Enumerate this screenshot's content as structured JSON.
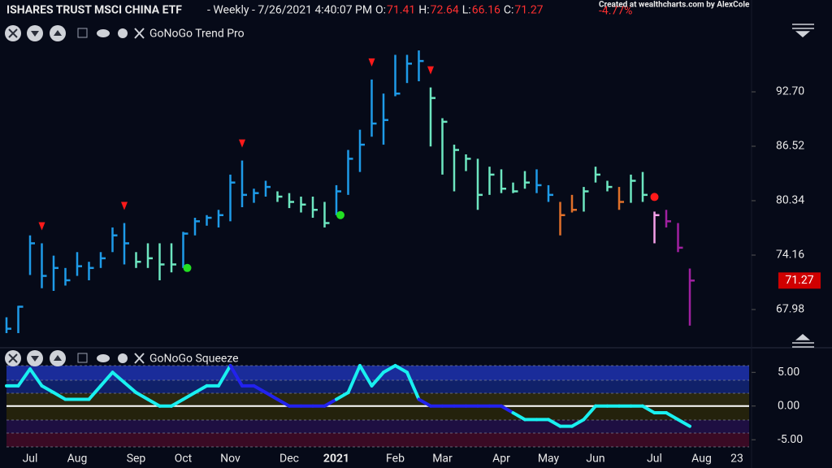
{
  "chart_data": [
    {
      "type": "ohlc",
      "title": "ISHARES TRUST MSCI CHINA ETF",
      "subtitle": "- Weekly - 7/26/2021 4:40:07 PM",
      "quote": [
        {
          "label": "O:",
          "value": 71.41
        },
        {
          "label": "H:",
          "value": 72.64
        },
        {
          "label": "L:",
          "value": 66.16
        },
        {
          "label": "C:",
          "value": 71.27
        }
      ],
      "change": {
        "value": -4.77,
        "label": "-4.77%"
      },
      "credit": "Created at wealthcharts.com by AlexCole",
      "panel": "GoNoGo Trend Pro",
      "categories": [
        null,
        null,
        "Jul",
        null,
        null,
        null,
        "Aug",
        null,
        null,
        null,
        null,
        "Sep",
        null,
        null,
        null,
        "Oct",
        null,
        null,
        null,
        "Nov",
        null,
        null,
        null,
        null,
        "Dec",
        null,
        null,
        null,
        "2021",
        null,
        null,
        null,
        null,
        "Feb",
        null,
        null,
        null,
        "Mar",
        null,
        null,
        null,
        null,
        "Apr",
        null,
        null,
        null,
        "May",
        null,
        null,
        null,
        "Jun",
        null,
        null,
        null,
        null,
        "Jul",
        null,
        null,
        null,
        "Aug",
        null,
        null,
        "23"
      ],
      "high": [
        67.1,
        68.4,
        76.4,
        75.5,
        74.1,
        72.7,
        74.5,
        73.4,
        74.5,
        77.3,
        77.8,
        74.5,
        75.5,
        75.5,
        75.5,
        76.8,
        78.4,
        78.7,
        79.3,
        83.3,
        84.9,
        81.7,
        82.6,
        81.4,
        81.2,
        80.8,
        80.8,
        80.2,
        82.1,
        86.1,
        88.4,
        94.1,
        92.5,
        96.9,
        96.9,
        97.4,
        93.2,
        89.7,
        86.7,
        85.6,
        85.1,
        84.2,
        83.9,
        82.4,
        83.7,
        83.9,
        82.1,
        80.2,
        81.0,
        81.9,
        84.2,
        82.6,
        81.9,
        83.3,
        83.6,
        79.1,
        79.3,
        77.8,
        72.64,
        null,
        null,
        null,
        null
      ],
      "low": [
        65.3,
        65.3,
        71.9,
        70.4,
        70.1,
        70.7,
        71.8,
        71.3,
        72.7,
        74.5,
        73.1,
        72.7,
        72.7,
        71.3,
        72.2,
        72.7,
        76.4,
        77.5,
        77.3,
        78.0,
        79.6,
        80.1,
        80.8,
        80.2,
        79.5,
        79.0,
        78.4,
        77.3,
        78.7,
        81.0,
        83.6,
        87.6,
        86.7,
        92.2,
        93.7,
        93.9,
        86.5,
        83.3,
        81.4,
        83.7,
        79.3,
        81.0,
        81.2,
        81.2,
        81.7,
        81.2,
        80.2,
        76.4,
        79.0,
        79.1,
        82.4,
        81.4,
        79.3,
        80.1,
        80.2,
        75.5,
        77.3,
        74.5,
        66.16,
        null,
        null,
        null,
        null
      ],
      "close": [
        65.8,
        68.3,
        75.5,
        71.8,
        72.7,
        71.3,
        72.9,
        72.7,
        73.8,
        76.4,
        75.5,
        73.4,
        73.8,
        73.1,
        73.1,
        76.6,
        78.0,
        78.4,
        78.7,
        82.4,
        81.0,
        81.2,
        81.9,
        80.8,
        80.2,
        79.9,
        79.3,
        77.8,
        81.4,
        85.1,
        86.7,
        89.1,
        89.5,
        92.5,
        95.9,
        96.2,
        92.0,
        89.3,
        86.1,
        85.1,
        81.0,
        83.3,
        81.7,
        81.4,
        82.4,
        82.1,
        81.0,
        78.7,
        79.3,
        81.4,
        83.3,
        81.9,
        80.2,
        82.6,
        81.0,
        78.7,
        78.0,
        75.0,
        71.27,
        null,
        null,
        null,
        null
      ],
      "colors": [
        "#1e9be8",
        "#1e9be8",
        "#1e9be8",
        "#1e9be8",
        "#1e9be8",
        "#1e9be8",
        "#1e9be8",
        "#1e9be8",
        "#1e9be8",
        "#1e9be8",
        "#1e9be8",
        "#6de6c0",
        "#6de6c0",
        "#6de6c0",
        "#6de6c0",
        "#1e9be8",
        "#1e9be8",
        "#1e9be8",
        "#1e9be8",
        "#1e9be8",
        "#1e9be8",
        "#1e9be8",
        "#1e9be8",
        "#6de6c0",
        "#6de6c0",
        "#6de6c0",
        "#6de6c0",
        "#6de6c0",
        "#1e9be8",
        "#1e9be8",
        "#1e9be8",
        "#1e9be8",
        "#1e9be8",
        "#1e9be8",
        "#1e9be8",
        "#1e9be8",
        "#6de6c0",
        "#6de6c0",
        "#6de6c0",
        "#6de6c0",
        "#6de6c0",
        "#6de6c0",
        "#6de6c0",
        "#6de6c0",
        "#6de6c0",
        "#1e9be8",
        "#1e9be8",
        "#e0702a",
        "#e0702a",
        "#6de6c0",
        "#6de6c0",
        "#6de6c0",
        "#e0702a",
        "#6de6c0",
        "#6de6c0",
        "#f5a0e8",
        "#a020a0",
        "#a020a0",
        "#a020a0",
        null,
        null,
        null,
        null
      ],
      "markers": [
        {
          "index": 3,
          "shape": "triangle",
          "color": "#ff1a1a"
        },
        {
          "index": 10,
          "shape": "triangle",
          "color": "#ff1a1a"
        },
        {
          "index": 20,
          "shape": "triangle",
          "color": "#ff1a1a"
        },
        {
          "index": 31,
          "shape": "triangle",
          "color": "#ff1a1a"
        },
        {
          "index": 36,
          "shape": "triangle",
          "color": "#ff1a1a"
        },
        {
          "index": 15,
          "shape": "dot",
          "color": "#22e022"
        },
        {
          "index": 28,
          "shape": "dot",
          "color": "#22e022"
        },
        {
          "index": 55,
          "shape": "dot",
          "color": "#ff1a1a"
        }
      ],
      "ylim": [
        64.84,
        100.36
      ],
      "yticks": [
        {
          "value": 92.7,
          "label": "92.70"
        },
        86.52,
        80.34,
        74.16,
        67.98
      ],
      "last_price_color": "#d00000"
    },
    {
      "type": "line",
      "panel": "GoNoGo Squeeze",
      "values": [
        3,
        3,
        5.5,
        3,
        2,
        1,
        1,
        1,
        3,
        5,
        3.5,
        2,
        1,
        0,
        0,
        1,
        2,
        3,
        3,
        6,
        3,
        3,
        2,
        1,
        0,
        0,
        0,
        0,
        1,
        2,
        6,
        3,
        5,
        6,
        5,
        1,
        0,
        0,
        0,
        0,
        0,
        0,
        0,
        -1,
        -2,
        -2,
        -2,
        -3,
        -3,
        -2,
        0,
        0,
        0,
        0,
        0,
        -1,
        -1,
        -2,
        -3,
        null,
        null,
        null,
        null
      ],
      "colors": [
        "#19f0f0",
        "#19f0f0",
        "#19f0f0",
        "#19f0f0",
        "#19f0f0",
        "#19f0f0",
        "#19f0f0",
        "#19f0f0",
        "#19f0f0",
        "#19f0f0",
        "#19f0f0",
        "#19f0f0",
        "#19f0f0",
        "#19f0f0",
        "#19f0f0",
        "#19f0f0",
        "#19f0f0",
        "#19f0f0",
        "#19f0f0",
        "#2222ee",
        "#2222ee",
        "#2222ee",
        "#2222ee",
        "#2222ee",
        "#2222ee",
        "#2222ee",
        "#2222ee",
        "#2222ee",
        "#19f0f0",
        "#19f0f0",
        "#19f0f0",
        "#19f0f0",
        "#19f0f0",
        "#19f0f0",
        "#19f0f0",
        "#2222ee",
        "#2222ee",
        "#2222ee",
        "#2222ee",
        "#2222ee",
        "#2222ee",
        "#2222ee",
        "#2222ee",
        "#19f0f0",
        "#19f0f0",
        "#19f0f0",
        "#19f0f0",
        "#19f0f0",
        "#19f0f0",
        "#19f0f0",
        "#19f0f0",
        "#19f0f0",
        "#19f0f0",
        "#19f0f0",
        "#19f0f0",
        "#19f0f0",
        "#19f0f0",
        "#19f0f0",
        "#19f0f0",
        null,
        null,
        null,
        null
      ],
      "ylim": [
        -6.3,
        6.0
      ],
      "yticks": [
        {
          "value": 5,
          "label": "5.00"
        },
        {
          "value": 0,
          "label": "0.00"
        },
        {
          "value": -5,
          "label": "-5.00"
        }
      ]
    }
  ]
}
